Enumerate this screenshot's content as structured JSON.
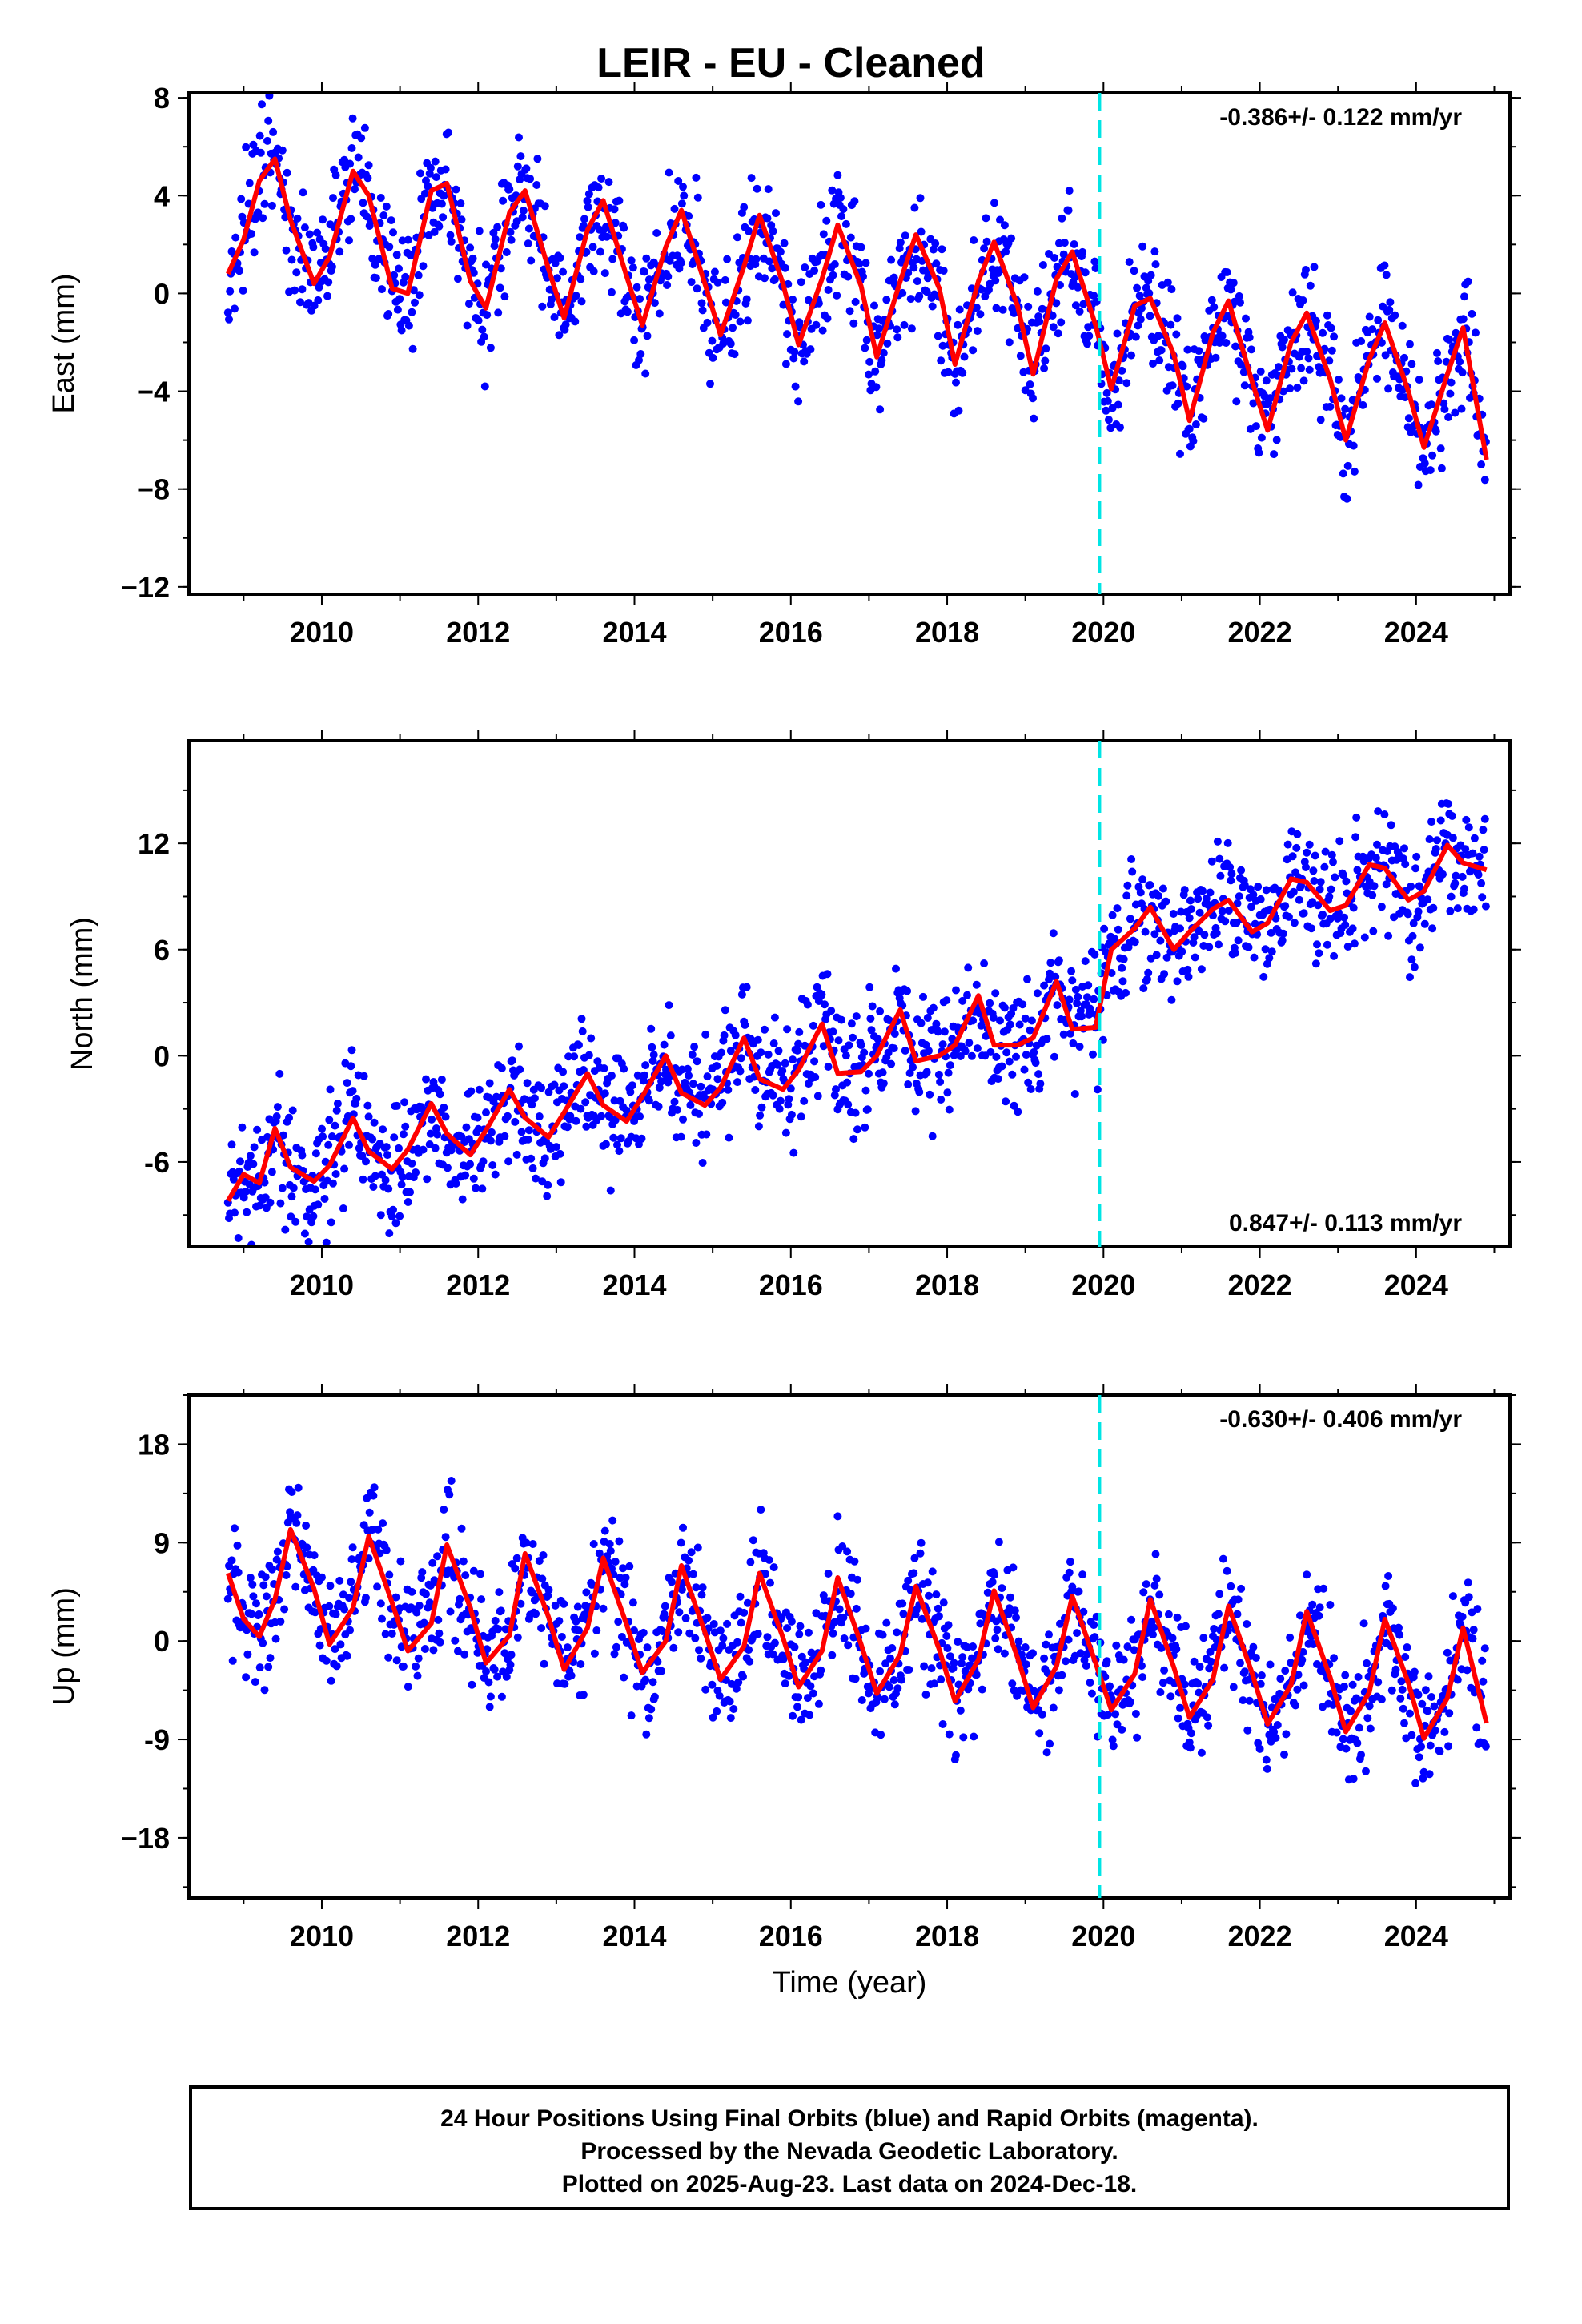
{
  "title": "LEIR  - EU - Cleaned",
  "colors": {
    "points": "#0000ff",
    "fit": "#ff0000",
    "marker": "#00e5e5",
    "frame": "#000000"
  },
  "footer": {
    "line1": "24 Hour Positions Using Final Orbits (blue) and Rapid Orbits (magenta).",
    "line2": "Processed by the Nevada Geodetic Laboratory.",
    "line3": "Plotted on 2025-Aug-23. Last data on 2024-Dec-18."
  },
  "chart_data": [
    {
      "type": "scatter",
      "component": "East",
      "ylabel": "East (mm)",
      "xlabel": "",
      "rate_label": "-0.386+/- 0.122 mm/yr",
      "rate_position": "top-right",
      "xlim": [
        2008.3,
        2025.2
      ],
      "ylim": [
        -12.3,
        8.2
      ],
      "x_ticks": [
        "2010",
        "2012",
        "2014",
        "2016",
        "2018",
        "2020",
        "2022",
        "2024"
      ],
      "y_ticks": [
        "8",
        "4",
        "0",
        "−4",
        "−8",
        "−12"
      ],
      "y_tick_values": [
        8,
        4,
        0,
        -4,
        -8,
        -12
      ],
      "vertical_marker_year": 2019.95,
      "grid": false,
      "series": [
        {
          "x": [
            2008.8,
            2009.0,
            2009.2,
            2009.4,
            2009.6,
            2009.9,
            2010.1,
            2010.4,
            2010.6,
            2010.9,
            2011.1,
            2011.4,
            2011.6,
            2011.9,
            2012.1,
            2012.4,
            2012.6,
            2012.9,
            2013.1,
            2013.4,
            2013.6,
            2013.9,
            2014.1,
            2014.4,
            2014.6,
            2014.9,
            2015.1,
            2015.4,
            2015.6,
            2015.9,
            2016.1,
            2016.4,
            2016.6,
            2016.9,
            2017.1,
            2017.4,
            2017.6,
            2017.9,
            2018.1,
            2018.4,
            2018.6,
            2018.9,
            2019.1,
            2019.4,
            2019.6,
            2019.9,
            2020.1,
            2020.4,
            2020.6,
            2020.9,
            2021.1,
            2021.4,
            2021.6,
            2021.9,
            2022.1,
            2022.4,
            2022.6,
            2022.9,
            2023.1,
            2023.4,
            2023.6,
            2023.9,
            2024.1,
            2024.4,
            2024.6,
            2024.9
          ],
          "y": [
            0.8,
            2.2,
            4.6,
            5.5,
            3.0,
            0.4,
            1.5,
            5.0,
            4.0,
            0.2,
            0.0,
            4.2,
            4.5,
            0.5,
            -0.6,
            3.3,
            4.2,
            1.0,
            -1.0,
            2.6,
            3.8,
            0.7,
            -1.3,
            1.9,
            3.4,
            0.4,
            -1.7,
            1.1,
            3.2,
            0.4,
            -2.1,
            0.6,
            2.8,
            0.3,
            -2.6,
            0.5,
            2.4,
            0.2,
            -2.9,
            0.5,
            2.1,
            -0.5,
            -3.3,
            0.6,
            1.7,
            -1.3,
            -3.9,
            -0.5,
            -0.2,
            -2.5,
            -5.2,
            -1.6,
            -0.3,
            -3.6,
            -5.6,
            -2.0,
            -0.8,
            -3.5,
            -6.0,
            -2.7,
            -1.2,
            -4.0,
            -6.3,
            -3.3,
            -1.4,
            -6.8
          ]
        }
      ]
    },
    {
      "type": "scatter",
      "component": "North",
      "ylabel": "North (mm)",
      "xlabel": "",
      "rate_label": "0.847+/- 0.113 mm/yr",
      "rate_position": "bottom-right",
      "xlim": [
        2008.3,
        2025.2
      ],
      "ylim": [
        -10.8,
        17.8
      ],
      "x_ticks": [
        "2010",
        "2012",
        "2014",
        "2016",
        "2018",
        "2020",
        "2022",
        "2024"
      ],
      "y_ticks": [
        "12",
        "6",
        "0",
        "-6"
      ],
      "y_tick_values": [
        12,
        6,
        0,
        -6
      ],
      "vertical_marker_year": 2019.95,
      "grid": false,
      "series": [
        {
          "x": [
            2008.8,
            2009.0,
            2009.2,
            2009.4,
            2009.6,
            2009.9,
            2010.1,
            2010.4,
            2010.6,
            2010.9,
            2011.1,
            2011.4,
            2011.6,
            2011.9,
            2012.1,
            2012.4,
            2012.6,
            2012.9,
            2013.1,
            2013.4,
            2013.6,
            2013.9,
            2014.1,
            2014.4,
            2014.6,
            2014.9,
            2015.1,
            2015.4,
            2015.6,
            2015.9,
            2016.1,
            2016.4,
            2016.6,
            2016.9,
            2017.1,
            2017.4,
            2017.6,
            2017.9,
            2018.1,
            2018.4,
            2018.6,
            2018.9,
            2019.1,
            2019.4,
            2019.6,
            2019.9,
            2020.1,
            2020.4,
            2020.6,
            2020.9,
            2021.1,
            2021.4,
            2021.6,
            2021.9,
            2022.1,
            2022.4,
            2022.6,
            2022.9,
            2023.1,
            2023.4,
            2023.6,
            2023.9,
            2024.1,
            2024.4,
            2024.6,
            2024.9
          ],
          "y": [
            -8.2,
            -6.7,
            -7.2,
            -4.1,
            -6.3,
            -7.1,
            -6.2,
            -3.5,
            -5.4,
            -6.4,
            -5.3,
            -2.7,
            -4.4,
            -5.6,
            -4.2,
            -1.9,
            -3.5,
            -4.6,
            -3.2,
            -1.0,
            -2.8,
            -3.7,
            -2.3,
            0.0,
            -2.1,
            -2.8,
            -1.8,
            1.0,
            -1.3,
            -1.9,
            -0.8,
            1.8,
            -1.0,
            -0.9,
            0.0,
            2.6,
            -0.3,
            0.0,
            0.6,
            3.4,
            0.6,
            0.6,
            1.0,
            4.2,
            1.5,
            1.6,
            6.0,
            7.2,
            8.4,
            6.0,
            7.0,
            8.3,
            8.8,
            7.0,
            7.5,
            10.0,
            9.8,
            8.2,
            8.5,
            10.8,
            10.6,
            8.8,
            9.3,
            11.9,
            10.9,
            10.5
          ]
        }
      ]
    },
    {
      "type": "scatter",
      "component": "Up",
      "ylabel": "Up (mm)",
      "xlabel": "Time (year)",
      "rate_label": "-0.630+/- 0.406 mm/yr",
      "rate_position": "top-right",
      "xlim": [
        2008.3,
        2025.2
      ],
      "ylim": [
        -23.5,
        22.5
      ],
      "x_ticks": [
        "2010",
        "2012",
        "2014",
        "2016",
        "2018",
        "2020",
        "2022",
        "2024"
      ],
      "y_ticks": [
        "18",
        "9",
        "0",
        "-9",
        "−18"
      ],
      "y_tick_values": [
        18,
        9,
        0,
        -9,
        -18
      ],
      "vertical_marker_year": 2019.95,
      "grid": false,
      "series": [
        {
          "x": [
            2008.8,
            2009.0,
            2009.2,
            2009.4,
            2009.6,
            2009.9,
            2010.1,
            2010.4,
            2010.6,
            2010.9,
            2011.1,
            2011.4,
            2011.6,
            2011.9,
            2012.1,
            2012.4,
            2012.6,
            2012.9,
            2013.1,
            2013.4,
            2013.6,
            2013.9,
            2014.1,
            2014.4,
            2014.6,
            2014.9,
            2015.1,
            2015.4,
            2015.6,
            2015.9,
            2016.1,
            2016.4,
            2016.6,
            2016.9,
            2017.1,
            2017.4,
            2017.6,
            2017.9,
            2018.1,
            2018.4,
            2018.6,
            2018.9,
            2019.1,
            2019.4,
            2019.6,
            2019.9,
            2020.1,
            2020.4,
            2020.6,
            2020.9,
            2021.1,
            2021.4,
            2021.6,
            2021.9,
            2022.1,
            2022.4,
            2022.6,
            2022.9,
            2023.1,
            2023.4,
            2023.6,
            2023.9,
            2024.1,
            2024.4,
            2024.6,
            2024.9
          ],
          "y": [
            6.2,
            2.0,
            0.4,
            3.8,
            10.2,
            4.8,
            -0.3,
            3.0,
            9.6,
            3.5,
            -0.9,
            1.6,
            8.8,
            3.0,
            -2.0,
            0.5,
            8.0,
            2.2,
            -2.6,
            1.2,
            7.6,
            1.5,
            -2.9,
            0.0,
            6.9,
            0.8,
            -3.5,
            -0.5,
            6.2,
            0.3,
            -4.2,
            -0.9,
            5.8,
            -0.3,
            -4.8,
            -1.2,
            5.0,
            -0.8,
            -5.5,
            -1.7,
            4.6,
            -1.5,
            -6.1,
            -2.3,
            4.1,
            -2.0,
            -6.3,
            -3.0,
            3.8,
            -2.4,
            -7.0,
            -3.5,
            3.2,
            -2.9,
            -7.6,
            -4.0,
            2.7,
            -3.3,
            -8.3,
            -4.7,
            2.0,
            -3.8,
            -8.9,
            -5.2,
            1.2,
            -7.5
          ]
        }
      ]
    }
  ]
}
